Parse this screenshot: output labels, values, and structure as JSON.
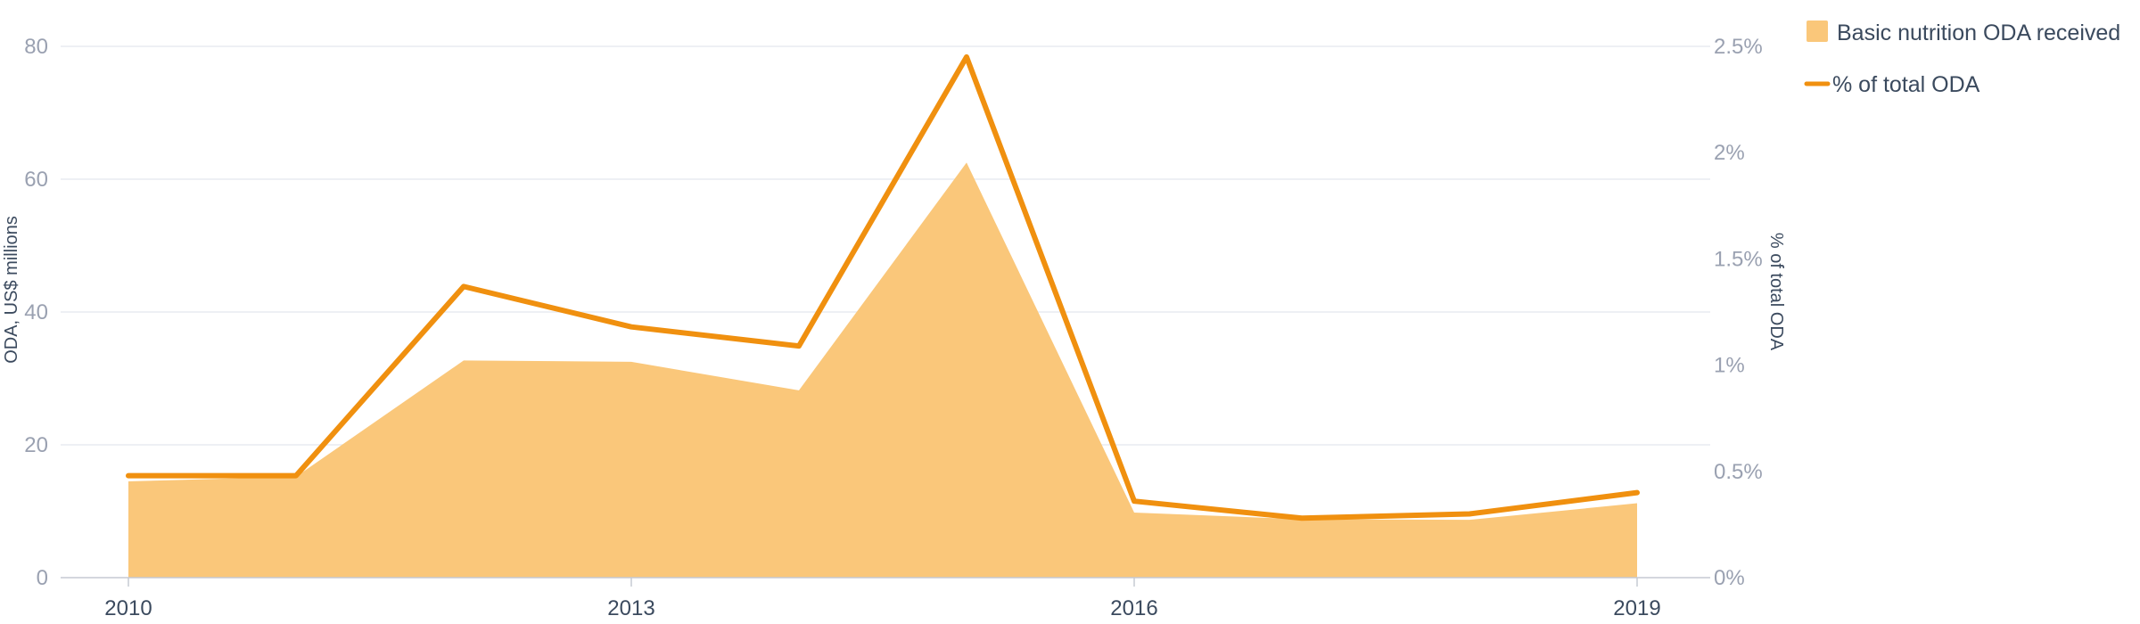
{
  "chart_data": {
    "type": "area",
    "x": [
      2010,
      2011,
      2012,
      2013,
      2014,
      2015,
      2016,
      2017,
      2018,
      2019
    ],
    "x_ticks": [
      "2010",
      "2013",
      "2016",
      "2019"
    ],
    "series": [
      {
        "name": "Basic nutrition ODA received",
        "type": "area",
        "axis": "left",
        "color": "#fac77a",
        "values": [
          14.5,
          15.2,
          32.7,
          32.5,
          28.2,
          62.5,
          9.8,
          8.8,
          8.7,
          11.2
        ]
      },
      {
        "name": "% of total ODA",
        "type": "line",
        "axis": "right",
        "color": "#f0900f",
        "values": [
          0.48,
          0.48,
          1.37,
          1.18,
          1.09,
          2.45,
          0.36,
          0.28,
          0.3,
          0.4
        ]
      }
    ],
    "y_left": {
      "label": "ODA, US$ millions",
      "ylim": [
        0,
        80
      ],
      "ticks": [
        "0",
        "20",
        "40",
        "60",
        "80"
      ]
    },
    "y_right": {
      "label": "% of total ODA",
      "ylim": [
        0,
        2.5
      ],
      "ticks": [
        "0%",
        "0.5%",
        "1%",
        "1.5%",
        "2%",
        "2.5%"
      ]
    },
    "grid": true,
    "legend_position": "top-right",
    "gridline_color": "#e9ecf0",
    "axis_line_color": "#c5cad3"
  }
}
